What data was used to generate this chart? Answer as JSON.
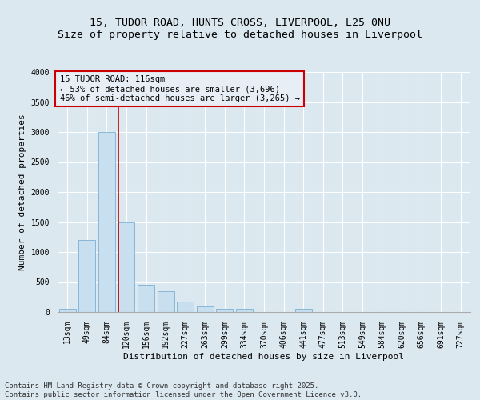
{
  "title_line1": "15, TUDOR ROAD, HUNTS CROSS, LIVERPOOL, L25 0NU",
  "title_line2": "Size of property relative to detached houses in Liverpool",
  "xlabel": "Distribution of detached houses by size in Liverpool",
  "ylabel": "Number of detached properties",
  "categories": [
    "13sqm",
    "49sqm",
    "84sqm",
    "120sqm",
    "156sqm",
    "192sqm",
    "227sqm",
    "263sqm",
    "299sqm",
    "334sqm",
    "370sqm",
    "406sqm",
    "441sqm",
    "477sqm",
    "513sqm",
    "549sqm",
    "584sqm",
    "620sqm",
    "656sqm",
    "691sqm",
    "727sqm"
  ],
  "values": [
    50,
    1200,
    3000,
    1500,
    450,
    350,
    175,
    100,
    50,
    50,
    0,
    0,
    50,
    0,
    0,
    0,
    0,
    0,
    0,
    0,
    0
  ],
  "bar_color": "#c8dff0",
  "bar_edge_color": "#7ab0d0",
  "vline_x_index": 3,
  "vline_color": "#cc0000",
  "annotation_text": "15 TUDOR ROAD: 116sqm\n← 53% of detached houses are smaller (3,696)\n46% of semi-detached houses are larger (3,265) →",
  "annotation_box_facecolor": "#e8eef5",
  "annotation_box_edgecolor": "#cc0000",
  "ylim_max": 4000,
  "yticks": [
    0,
    500,
    1000,
    1500,
    2000,
    2500,
    3000,
    3500,
    4000
  ],
  "footer_line1": "Contains HM Land Registry data © Crown copyright and database right 2025.",
  "footer_line2": "Contains public sector information licensed under the Open Government Licence v3.0.",
  "background_color": "#dce8f0",
  "grid_color": "#ffffff",
  "title_fontsize": 9.5,
  "axis_label_fontsize": 8,
  "tick_fontsize": 7,
  "annotation_fontsize": 7.5,
  "footer_fontsize": 6.5
}
